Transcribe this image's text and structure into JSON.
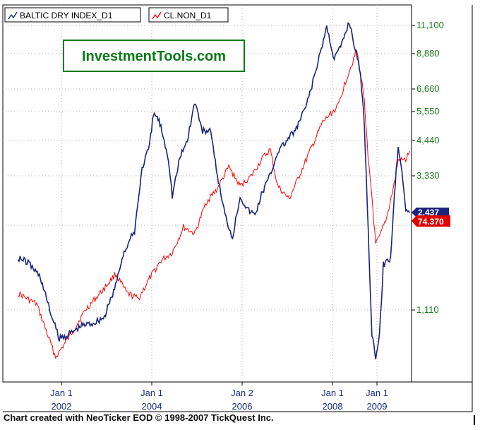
{
  "branding": {
    "watermark": "InvestmentTools.com"
  },
  "footer": {
    "credit": "Chart created with NeoTicker EOD © 1998-2007 TickQuest Inc."
  },
  "colors": {
    "bdi": "#1a237e",
    "oil": "#ff0000",
    "axis_text": "#1d7a1d",
    "date_text": "#1a2a8a",
    "frame": "#ffffff",
    "background": "#ffffff"
  },
  "chart_data": {
    "type": "line",
    "y_scale": "log",
    "y_ticks": [
      "11,100",
      "8,880",
      "6,660",
      "5,550",
      "4,440",
      "3,330",
      "1,110"
    ],
    "x_ticks": [
      {
        "line1": "Jan 1",
        "line2": "2002"
      },
      {
        "line1": "Jan 1",
        "line2": "2004"
      },
      {
        "line1": "Jan 2",
        "line2": "2006"
      },
      {
        "line1": "Jan 1",
        "line2": "2008"
      },
      {
        "line1": "Jan 1",
        "line2": "2009"
      }
    ],
    "legend": [
      {
        "label": "BALTIC DRY INDEX_D1"
      },
      {
        "label": "CL.NON_D1"
      }
    ],
    "last_value_labels": [
      "2,437",
      "74.370"
    ],
    "series": [
      {
        "name": "BALTIC DRY INDEX_D1",
        "points": [
          [
            "2001-01",
            1700
          ],
          [
            "2001-04",
            1620
          ],
          [
            "2001-07",
            1450
          ],
          [
            "2001-10",
            1050
          ],
          [
            "2001-12",
            880
          ],
          [
            "2002-03",
            920
          ],
          [
            "2002-06",
            980
          ],
          [
            "2002-09",
            1000
          ],
          [
            "2002-12",
            1050
          ],
          [
            "2003-03",
            1350
          ],
          [
            "2003-05",
            1750
          ],
          [
            "2003-08",
            2100
          ],
          [
            "2003-10",
            3500
          ],
          [
            "2003-12",
            4200
          ],
          [
            "2004-01",
            5400
          ],
          [
            "2004-02",
            5300
          ],
          [
            "2004-03",
            4900
          ],
          [
            "2004-05",
            3800
          ],
          [
            "2004-06",
            2800
          ],
          [
            "2004-08",
            3800
          ],
          [
            "2004-10",
            4400
          ],
          [
            "2004-12",
            6000
          ],
          [
            "2005-02",
            4700
          ],
          [
            "2005-04",
            4800
          ],
          [
            "2005-06",
            3300
          ],
          [
            "2005-08",
            2400
          ],
          [
            "2005-10",
            2000
          ],
          [
            "2005-12",
            2800
          ],
          [
            "2006-02",
            2500
          ],
          [
            "2006-04",
            2400
          ],
          [
            "2006-06",
            2900
          ],
          [
            "2006-08",
            3300
          ],
          [
            "2006-10",
            4000
          ],
          [
            "2006-12",
            4300
          ],
          [
            "2007-03",
            4800
          ],
          [
            "2007-06",
            6000
          ],
          [
            "2007-09",
            8500
          ],
          [
            "2007-11",
            11000
          ],
          [
            "2008-01",
            8500
          ],
          [
            "2008-03",
            9500
          ],
          [
            "2008-05",
            11500
          ],
          [
            "2008-06",
            10000
          ],
          [
            "2008-08",
            7500
          ],
          [
            "2008-09",
            5000
          ],
          [
            "2008-10",
            2200
          ],
          [
            "2008-11",
            900
          ],
          [
            "2008-12",
            760
          ],
          [
            "2009-01",
            900
          ],
          [
            "2009-02",
            1600
          ],
          [
            "2009-04",
            1700
          ],
          [
            "2009-05",
            2800
          ],
          [
            "2009-06",
            4200
          ],
          [
            "2009-07",
            3500
          ],
          [
            "2009-08",
            2500
          ],
          [
            "2009-09",
            2437
          ]
        ]
      },
      {
        "name": "CL.NON_D1",
        "points": [
          [
            "2001-01",
            29
          ],
          [
            "2001-06",
            27
          ],
          [
            "2001-11",
            19
          ],
          [
            "2002-03",
            22
          ],
          [
            "2002-07",
            26
          ],
          [
            "2002-12",
            30
          ],
          [
            "2003-03",
            33
          ],
          [
            "2003-06",
            29
          ],
          [
            "2003-09",
            28
          ],
          [
            "2003-12",
            32
          ],
          [
            "2004-03",
            36
          ],
          [
            "2004-06",
            38
          ],
          [
            "2004-09",
            45
          ],
          [
            "2004-12",
            43
          ],
          [
            "2005-03",
            53
          ],
          [
            "2005-06",
            58
          ],
          [
            "2005-09",
            67
          ],
          [
            "2005-12",
            59
          ],
          [
            "2006-03",
            63
          ],
          [
            "2006-06",
            71
          ],
          [
            "2006-08",
            75
          ],
          [
            "2006-10",
            59
          ],
          [
            "2007-01",
            54
          ],
          [
            "2007-04",
            64
          ],
          [
            "2007-07",
            76
          ],
          [
            "2007-10",
            90
          ],
          [
            "2007-12",
            95
          ],
          [
            "2008-02",
            100
          ],
          [
            "2008-04",
            118
          ],
          [
            "2008-07",
            145
          ],
          [
            "2008-09",
            105
          ],
          [
            "2008-10",
            70
          ],
          [
            "2008-11",
            55
          ],
          [
            "2008-12",
            40
          ],
          [
            "2009-01",
            42
          ],
          [
            "2009-03",
            48
          ],
          [
            "2009-05",
            60
          ],
          [
            "2009-06",
            70
          ],
          [
            "2009-08",
            70
          ],
          [
            "2009-09",
            74.37
          ]
        ]
      }
    ]
  }
}
